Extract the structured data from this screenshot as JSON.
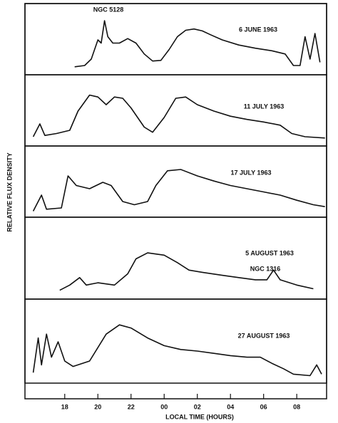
{
  "chart_data": [
    {
      "type": "line",
      "title": "6 JUNE 1963",
      "ylabel": "RELATIVE FLUX DENSITY",
      "annotation": "NGC 5128",
      "color": "#111111",
      "x": [
        18.6,
        19.2,
        19.6,
        20.0,
        20.2,
        20.4,
        20.6,
        20.9,
        21.3,
        21.8,
        22.3,
        22.8,
        23.3,
        23.8,
        24.3,
        24.8,
        25.3,
        25.8,
        26.3,
        26.8,
        27.5,
        28.5,
        29.5,
        30.5,
        31.3,
        31.8,
        32.2,
        32.5,
        32.8,
        33.1,
        33.4
      ],
      "values": [
        0.08,
        0.1,
        0.2,
        0.5,
        0.45,
        0.8,
        0.55,
        0.45,
        0.45,
        0.52,
        0.45,
        0.28,
        0.17,
        0.18,
        0.35,
        0.55,
        0.65,
        0.67,
        0.64,
        0.58,
        0.5,
        0.42,
        0.37,
        0.33,
        0.28,
        0.1,
        0.1,
        0.55,
        0.2,
        0.6,
        0.15
      ],
      "xlim": [
        15.6,
        33.8
      ],
      "ylim": [
        0,
        1
      ]
    },
    {
      "type": "line",
      "title": "11 JULY 1963",
      "color": "#111111",
      "x": [
        16.1,
        16.5,
        16.8,
        17.5,
        18.3,
        18.8,
        19.5,
        20.0,
        20.5,
        21.0,
        21.5,
        22.0,
        22.8,
        23.3,
        24.0,
        24.7,
        25.3,
        26.0,
        27.0,
        28.0,
        29.0,
        30.0,
        31.0,
        31.7,
        32.5,
        33.7
      ],
      "values": [
        0.1,
        0.3,
        0.12,
        0.15,
        0.2,
        0.5,
        0.75,
        0.72,
        0.6,
        0.72,
        0.7,
        0.55,
        0.25,
        0.17,
        0.4,
        0.7,
        0.72,
        0.6,
        0.5,
        0.42,
        0.37,
        0.33,
        0.28,
        0.15,
        0.1,
        0.08
      ],
      "xlim": [
        15.6,
        33.8
      ],
      "ylim": [
        0,
        1
      ]
    },
    {
      "type": "line",
      "title": "17 JULY 1963",
      "color": "#111111",
      "x": [
        16.1,
        16.6,
        16.9,
        17.8,
        18.2,
        18.7,
        19.5,
        20.3,
        20.8,
        21.5,
        22.2,
        23.0,
        23.5,
        24.2,
        25.0,
        26.0,
        27.0,
        28.0,
        29.0,
        30.0,
        31.0,
        32.0,
        33.0,
        33.7
      ],
      "values": [
        0.05,
        0.3,
        0.08,
        0.1,
        0.6,
        0.45,
        0.4,
        0.5,
        0.45,
        0.2,
        0.15,
        0.2,
        0.45,
        0.68,
        0.7,
        0.6,
        0.52,
        0.45,
        0.4,
        0.35,
        0.3,
        0.22,
        0.15,
        0.12
      ],
      "xlim": [
        15.6,
        33.8
      ],
      "ylim": [
        0,
        1
      ]
    },
    {
      "type": "line",
      "title": "5 AUGUST 1963",
      "annotation": "NGC 1316",
      "color": "#111111",
      "x": [
        17.7,
        18.3,
        18.9,
        19.3,
        20.0,
        21.0,
        21.8,
        22.3,
        23.0,
        24.0,
        24.8,
        25.5,
        26.3,
        27.5,
        28.5,
        29.5,
        30.2,
        30.6,
        31.0,
        32.0,
        33.0
      ],
      "values": [
        0.08,
        0.15,
        0.25,
        0.15,
        0.18,
        0.15,
        0.3,
        0.5,
        0.58,
        0.55,
        0.45,
        0.35,
        0.32,
        0.28,
        0.25,
        0.22,
        0.22,
        0.35,
        0.22,
        0.15,
        0.1
      ],
      "xlim": [
        15.6,
        33.8
      ],
      "ylim": [
        0,
        1
      ]
    },
    {
      "type": "line",
      "title": "27 AUGUST 1963",
      "xlabel": "LOCAL TIME    (HOURS)",
      "color": "#111111",
      "x": [
        16.1,
        16.4,
        16.6,
        16.9,
        17.2,
        17.6,
        18.0,
        18.5,
        19.5,
        20.5,
        21.3,
        22.0,
        23.0,
        24.0,
        25.0,
        26.0,
        27.0,
        28.0,
        29.0,
        29.8,
        30.5,
        31.2,
        31.8,
        32.8,
        33.2,
        33.5
      ],
      "values": [
        0.1,
        0.55,
        0.2,
        0.6,
        0.3,
        0.5,
        0.25,
        0.18,
        0.25,
        0.6,
        0.72,
        0.68,
        0.55,
        0.45,
        0.4,
        0.38,
        0.35,
        0.32,
        0.3,
        0.3,
        0.22,
        0.15,
        0.08,
        0.06,
        0.2,
        0.08
      ],
      "xlim": [
        15.6,
        33.8
      ],
      "ylim": [
        0,
        1
      ],
      "xticks": [
        18,
        20,
        22,
        {
          "value": 24,
          "label": "00"
        },
        {
          "value": 26,
          "label": "02"
        },
        {
          "value": 28,
          "label": "04"
        },
        {
          "value": 30,
          "label": "06"
        },
        {
          "value": 32,
          "label": "08"
        }
      ]
    }
  ]
}
